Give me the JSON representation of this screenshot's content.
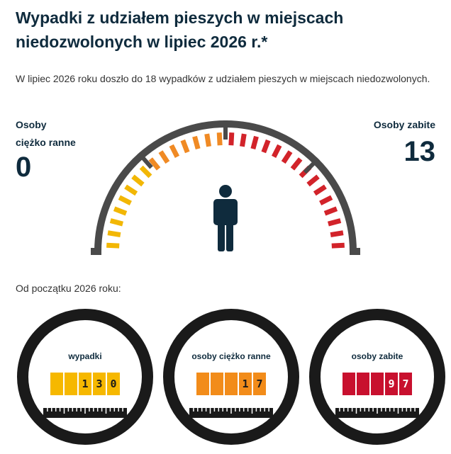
{
  "title": "Wypadki z udziałem pieszych w miejscach niedozwolonych w lipiec 2026 r.*",
  "intro": "W lipiec 2026 roku doszło do 18 wypadków z udziałem pieszych w miejscach niedozwolonych.",
  "injured": {
    "label": "Osoby ciężko ranne",
    "value": "0"
  },
  "killed": {
    "label": "Osoby zabite",
    "value": "13"
  },
  "gauge": {
    "icon": "pedestrian-icon",
    "colors": {
      "low": "#f2b705",
      "mid": "#f08a24",
      "high": "#d2232a",
      "frame": "#4a4a4a"
    }
  },
  "since_label": "Od początku 2026 roku:",
  "counters": [
    {
      "label": "wypadki",
      "digits": [
        "",
        "",
        "1",
        "3",
        "0"
      ],
      "box_color": "#f6b800",
      "digit_color": "#1a1a1a"
    },
    {
      "label": "osoby ciężko ranne",
      "digits": [
        "",
        "",
        "",
        "1",
        "7"
      ],
      "box_color": "#f28c1a",
      "digit_color": "#1a1a1a"
    },
    {
      "label": "osoby zabite",
      "digits": [
        "",
        "",
        "",
        "9",
        "7"
      ],
      "box_color": "#c8102e",
      "digit_color": "#ffffff"
    }
  ]
}
